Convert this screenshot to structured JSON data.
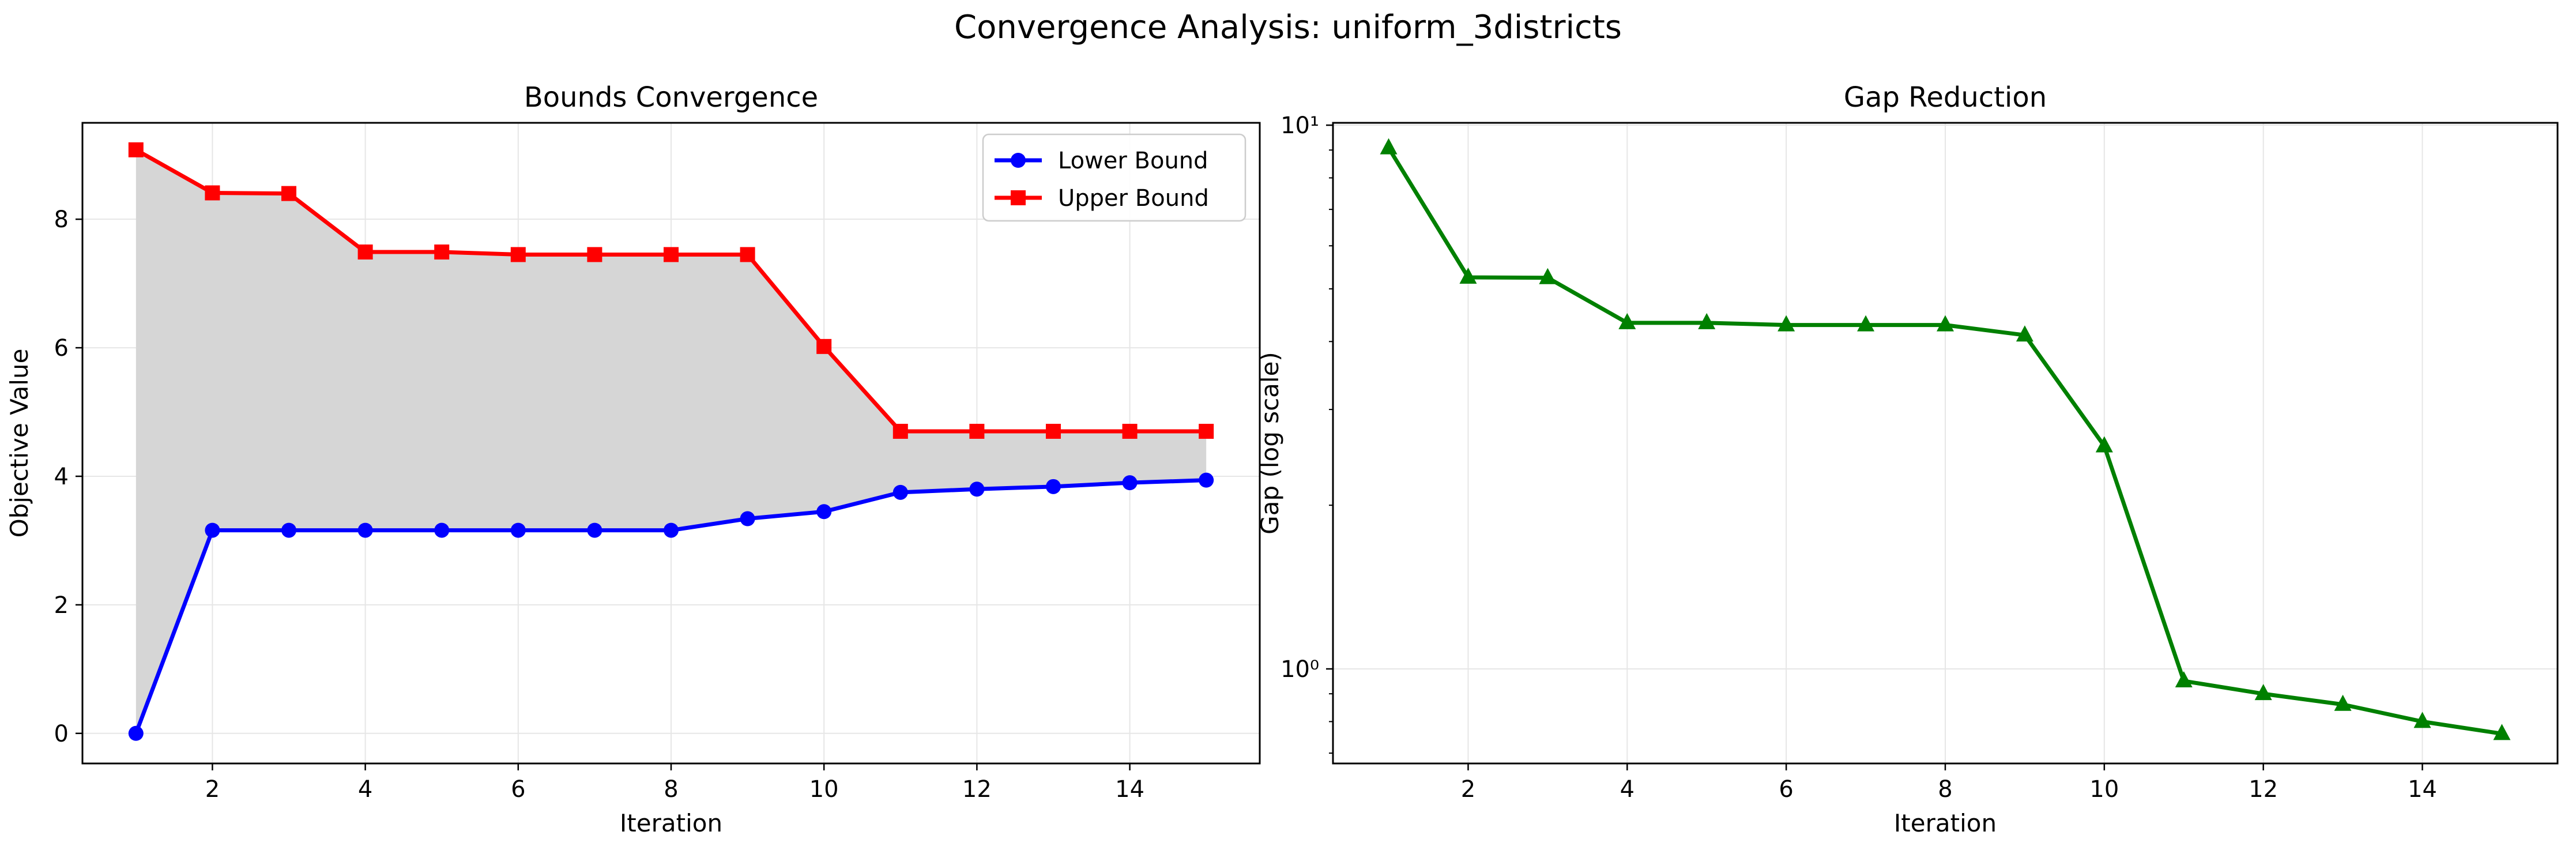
{
  "figure": {
    "title": "Convergence Analysis: uniform_3districts"
  },
  "chart_data": [
    {
      "type": "line",
      "title": "Bounds Convergence",
      "xlabel": "Iteration",
      "ylabel": "Objective Value",
      "x": [
        1,
        2,
        3,
        4,
        5,
        6,
        7,
        8,
        9,
        10,
        11,
        12,
        13,
        14,
        15
      ],
      "xlim": [
        0.3,
        15.7
      ],
      "ylim": [
        -0.4684,
        9.5
      ],
      "xticks": [
        2,
        4,
        6,
        8,
        10,
        12,
        14
      ],
      "yticks": [
        0,
        2,
        4,
        6,
        8
      ],
      "grid": true,
      "legend": "top-right",
      "fill_between": {
        "lower": "Lower Bound",
        "upper": "Upper Bound",
        "color": "#d6d6d6"
      },
      "series": [
        {
          "name": "Lower Bound",
          "marker": "circle",
          "color": "#0000ff",
          "values": [
            0,
            3.16,
            3.16,
            3.16,
            3.16,
            3.16,
            3.16,
            3.16,
            3.34,
            3.45,
            3.75,
            3.8,
            3.84,
            3.9,
            3.94
          ]
        },
        {
          "name": "Upper Bound",
          "marker": "square",
          "color": "#ff0000",
          "values": [
            9.08,
            8.41,
            8.4,
            7.49,
            7.49,
            7.45,
            7.45,
            7.45,
            7.45,
            6.02,
            4.7,
            4.7,
            4.7,
            4.7,
            4.7
          ]
        }
      ]
    },
    {
      "type": "line",
      "title": "Gap Reduction",
      "xlabel": "Iteration",
      "ylabel": "Gap (log scale)",
      "yscale": "log",
      "x": [
        1,
        2,
        3,
        4,
        5,
        6,
        7,
        8,
        9,
        10,
        11,
        12,
        13,
        14,
        15
      ],
      "xlim": [
        0.3,
        15.7
      ],
      "ylim": [
        0.67,
        10.1
      ],
      "xticks": [
        2,
        4,
        6,
        8,
        10,
        12,
        14
      ],
      "yticks": [
        1,
        10
      ],
      "ytick_labels": [
        "10⁰",
        "10¹"
      ],
      "grid": true,
      "series": [
        {
          "marker": "triangle",
          "color": "#008000",
          "values": [
            9.08,
            5.25,
            5.24,
            4.33,
            4.33,
            4.29,
            4.29,
            4.29,
            4.11,
            2.57,
            0.95,
            0.9,
            0.86,
            0.8,
            0.76
          ]
        }
      ]
    }
  ]
}
